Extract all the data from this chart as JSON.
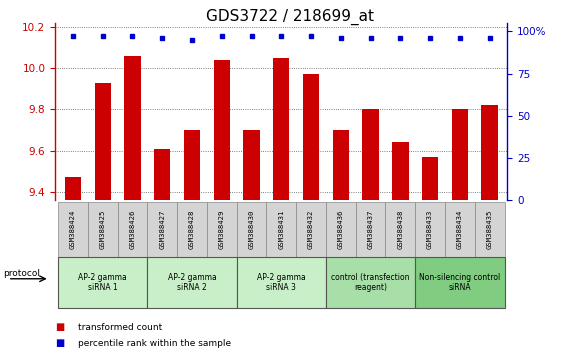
{
  "title": "GDS3722 / 218699_at",
  "samples": [
    "GSM388424",
    "GSM388425",
    "GSM388426",
    "GSM388427",
    "GSM388428",
    "GSM388429",
    "GSM388430",
    "GSM388431",
    "GSM388432",
    "GSM388436",
    "GSM388437",
    "GSM388438",
    "GSM388433",
    "GSM388434",
    "GSM388435"
  ],
  "red_values": [
    9.47,
    9.93,
    10.06,
    9.61,
    9.7,
    10.04,
    9.7,
    10.05,
    9.97,
    9.7,
    9.8,
    9.64,
    9.57,
    9.8,
    9.82
  ],
  "blue_values": [
    97,
    97,
    97,
    96,
    95,
    97,
    97,
    97,
    97,
    96,
    96,
    96,
    96,
    96,
    96
  ],
  "ylim_left": [
    9.36,
    10.22
  ],
  "ylim_right": [
    0,
    105
  ],
  "yticks_left": [
    9.4,
    9.6,
    9.8,
    10.0,
    10.2
  ],
  "yticks_right": [
    0,
    25,
    50,
    75,
    100
  ],
  "groups": [
    {
      "label": "AP-2 gamma\nsiRNA 1",
      "start": 0,
      "end": 3,
      "color": "#c8efc8"
    },
    {
      "label": "AP-2 gamma\nsiRNA 2",
      "start": 3,
      "end": 6,
      "color": "#c8efc8"
    },
    {
      "label": "AP-2 gamma\nsiRNA 3",
      "start": 6,
      "end": 9,
      "color": "#c8efc8"
    },
    {
      "label": "control (transfection\nreagent)",
      "start": 9,
      "end": 12,
      "color": "#a8dfa8"
    },
    {
      "label": "Non-silencing control\nsiRNA",
      "start": 12,
      "end": 15,
      "color": "#80cc80"
    }
  ],
  "bar_color": "#cc0000",
  "dot_color": "#0000cc",
  "bar_width": 0.55,
  "title_fontsize": 11,
  "tick_fontsize": 7.5,
  "protocol_label": "protocol",
  "legend_red": "transformed count",
  "legend_blue": "percentile rank within the sample",
  "bg_color": "#ffffff",
  "sample_bg_color": "#d4d4d4"
}
